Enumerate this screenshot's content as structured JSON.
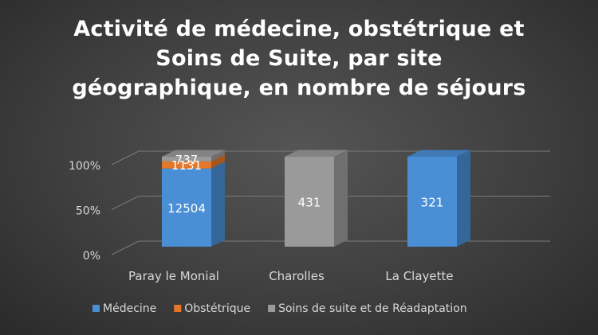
{
  "chart_data": {
    "type": "bar",
    "stacked": "100%",
    "three_d": true,
    "title_lines": [
      "Activité de médecine, obstétrique et",
      "Soins de Suite, par site",
      "géographique, en nombre de séjours"
    ],
    "categories": [
      "Paray le Monial",
      "Charolles",
      "La Clayette"
    ],
    "series": [
      {
        "name": "Médecine",
        "values": [
          12504,
          0,
          321
        ],
        "color": "#4a8ed6"
      },
      {
        "name": "Obstétrique",
        "values": [
          1131,
          0,
          0
        ],
        "color": "#e5772b"
      },
      {
        "name": "Soins de suite et de Réadaptation",
        "values": [
          737,
          431,
          0
        ],
        "color": "#9a9a9a"
      }
    ],
    "y_ticks": [
      "0%",
      "50%",
      "100%"
    ],
    "ylim": [
      0,
      100
    ],
    "grid": true,
    "legend_position": "bottom",
    "colors": {
      "background": "#404040",
      "text": "#ffffff",
      "axis_text": "#d9d9d9",
      "gridline": "#7a7a7a"
    }
  }
}
